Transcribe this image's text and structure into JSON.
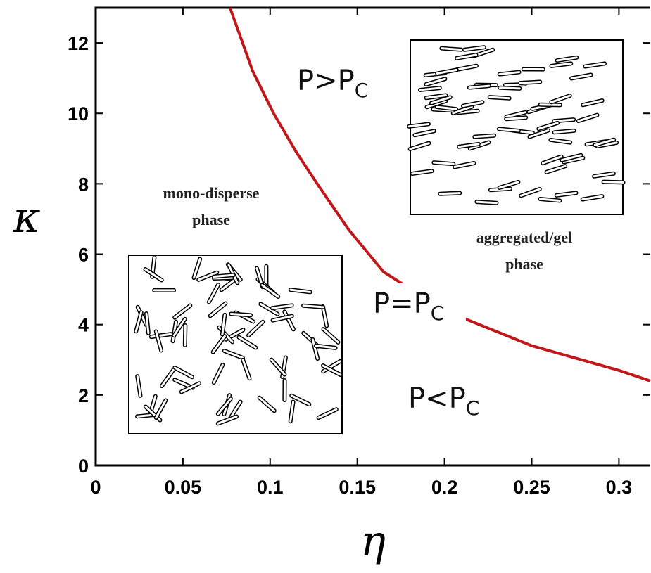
{
  "chart_data": {
    "type": "line",
    "x_label": "η",
    "y_label": "κ",
    "xlim": [
      0,
      0.318
    ],
    "ylim": [
      0,
      13
    ],
    "xticks": [
      0,
      0.05,
      0.1,
      0.15,
      0.2,
      0.25,
      0.3
    ],
    "yticks": [
      0,
      2,
      4,
      6,
      8,
      10,
      12
    ],
    "series": [
      {
        "color": "#c0181a",
        "x": [
          0.077,
          0.09,
          0.102,
          0.115,
          0.127,
          0.145,
          0.165,
          0.2,
          0.25,
          0.3,
          0.318
        ],
        "values": [
          13,
          11.2,
          10,
          8.9,
          8,
          6.7,
          5.5,
          4.4,
          3.4,
          2.7,
          2.4
        ]
      }
    ],
    "annotations": [
      {
        "text": "P>P",
        "subscript": "C"
      },
      {
        "text": "P=P",
        "subscript": "C"
      },
      {
        "text": "P<P",
        "subscript": "C"
      }
    ],
    "phase_labels": [
      [
        "mono-disperse",
        "phase"
      ],
      [
        "aggregated/gel",
        "phase"
      ]
    ]
  }
}
